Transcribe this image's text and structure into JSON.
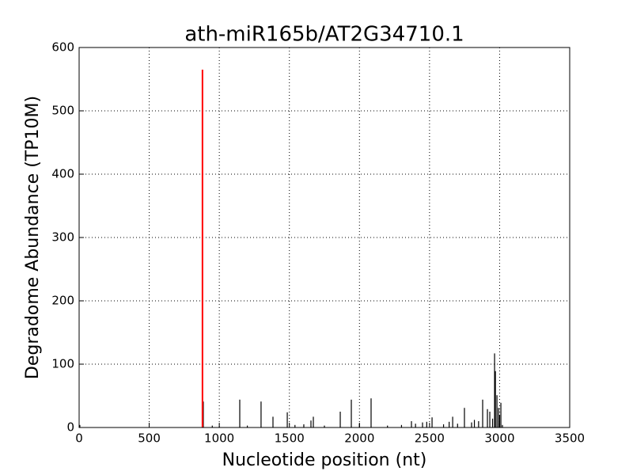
{
  "chart_data": {
    "type": "stem",
    "title": "ath-miR165b/AT2G34710.1",
    "x_label": "Nucleotide position (nt)",
    "y_label": "Degradome Abundance (TP10M)",
    "xlim": [
      0,
      3500
    ],
    "xticks": [
      0,
      500,
      1000,
      1500,
      2000,
      2500,
      3000,
      3500
    ],
    "ylim": [
      0,
      600
    ],
    "yticks": [
      0,
      100,
      200,
      300,
      400,
      500,
      600
    ],
    "grid": true,
    "series": [
      {
        "color": "#000000",
        "x": [
          5,
          886,
          950,
          1000,
          1146,
          1200,
          1298,
          1383,
          1485,
          1540,
          1603,
          1654,
          1671,
          1750,
          1863,
          1942,
          2000,
          2083,
          2200,
          2300,
          2371,
          2400,
          2450,
          2480,
          2518,
          2600,
          2640,
          2665,
          2700,
          2749,
          2800,
          2820,
          2850,
          2879,
          2913,
          2930,
          2950,
          2964,
          2970,
          2981,
          2992,
          3000,
          3009,
          3020
        ],
        "values": [
          4,
          41,
          3,
          2,
          44,
          3,
          41,
          17,
          24,
          4,
          5,
          11,
          17,
          3,
          25,
          44,
          6,
          46,
          3,
          4,
          10,
          6,
          8,
          9,
          16,
          5,
          9,
          17,
          6,
          31,
          8,
          12,
          10,
          44,
          29,
          25,
          14,
          117,
          89,
          51,
          31,
          20,
          39,
          4
        ]
      },
      {
        "color": "#ff0000",
        "x": [
          880
        ],
        "values": [
          565
        ]
      }
    ]
  }
}
